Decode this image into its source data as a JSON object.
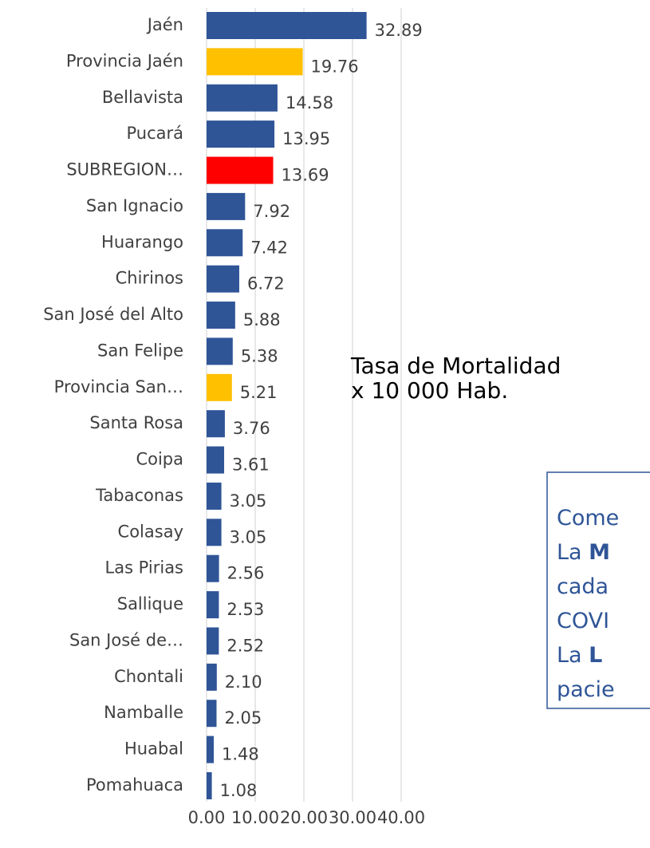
{
  "chart_data": {
    "type": "barh",
    "categories": [
      "Jaén",
      "Provincia Jaén",
      "Bellavista",
      "Pucará",
      "SUBREGION…",
      "San Ignacio",
      "Huarango",
      "Chirinos",
      "San José del Alto",
      "San Felipe",
      "Provincia San…",
      "Santa Rosa",
      "Coipa",
      "Tabaconas",
      "Colasay",
      "Las Pirias",
      "Sallique",
      "San José de…",
      "Chontali",
      "Namballe",
      "Huabal",
      "Pomahuaca"
    ],
    "values": [
      32.89,
      19.76,
      14.58,
      13.95,
      13.69,
      7.92,
      7.42,
      6.72,
      5.88,
      5.38,
      5.21,
      3.76,
      3.61,
      3.05,
      3.05,
      2.56,
      2.53,
      2.52,
      2.1,
      2.05,
      1.48,
      1.08
    ],
    "value_labels": [
      "32.89",
      "19.76",
      "14.58",
      "13.95",
      "13.69",
      "7.92",
      "7.42",
      "6.72",
      "5.88",
      "5.38",
      "5.21",
      "3.76",
      "3.61",
      "3.05",
      "3.05",
      "2.56",
      "2.53",
      "2.52",
      "2.10",
      "2.05",
      "1.48",
      "1.08"
    ],
    "colors": [
      "#2f5597",
      "#ffc000",
      "#2f5597",
      "#2f5597",
      "#ff0000",
      "#2f5597",
      "#2f5597",
      "#2f5597",
      "#2f5597",
      "#2f5597",
      "#ffc000",
      "#2f5597",
      "#2f5597",
      "#2f5597",
      "#2f5597",
      "#2f5597",
      "#2f5597",
      "#2f5597",
      "#2f5597",
      "#2f5597",
      "#2f5597",
      "#2f5597"
    ],
    "xlim": [
      0,
      40
    ],
    "xticks": [
      {
        "value": 0,
        "label": "0.00"
      },
      {
        "value": 10,
        "label": "10.00"
      },
      {
        "value": 20,
        "label": "20.00"
      },
      {
        "value": 30,
        "label": "30.00"
      },
      {
        "value": 40,
        "label": "40.00"
      }
    ],
    "grid": true,
    "annotation": [
      "Tasa de Mortalidad",
      "x 10 000 Hab."
    ],
    "comment_box": [
      [
        {
          "text": "Come"
        }
      ],
      [
        {
          "text": "La "
        },
        {
          "text": "M",
          "bold": true
        }
      ],
      [
        {
          "text": "cada"
        }
      ],
      [
        {
          "text": "COVI"
        }
      ],
      [
        {
          "text": "La "
        },
        {
          "text": "L",
          "bold": true
        }
      ],
      [
        {
          "text": "pacie"
        }
      ]
    ]
  }
}
